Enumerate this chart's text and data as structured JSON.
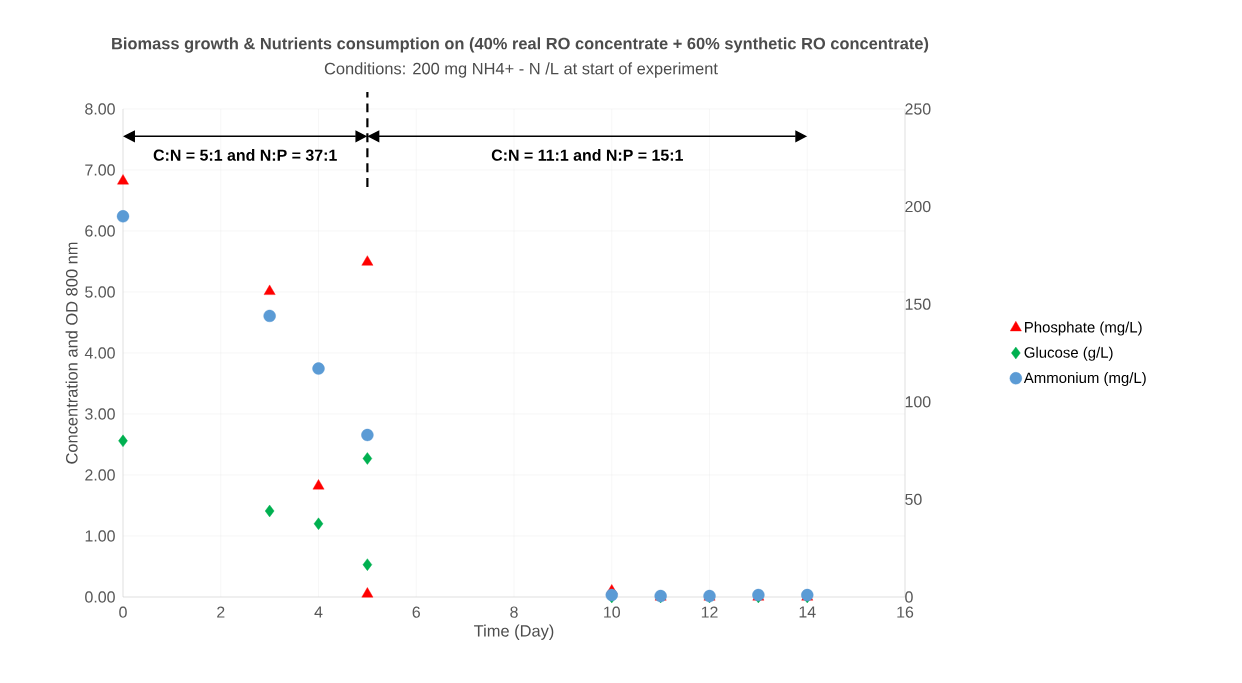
{
  "chart_data": {
    "type": "scatter",
    "title": "Biomass growth & Nutrients consumption on (40% real RO concentrate + 60% synthetic RO concentrate)",
    "subtitle": "Conditions: 200 mg NH4+ - N /L at start of experiment",
    "xlabel": "Time (Day)",
    "ylabel": "Concentration and OD 800 nm",
    "xlim": [
      0,
      16
    ],
    "xticks": [
      0,
      2,
      4,
      6,
      8,
      10,
      12,
      14,
      16
    ],
    "ylim": [
      0,
      8
    ],
    "yticks": [
      {
        "value": 0,
        "label": "0.00"
      },
      {
        "value": 1,
        "label": "1.00"
      },
      {
        "value": 2,
        "label": "2.00"
      },
      {
        "value": 3,
        "label": "3.00"
      },
      {
        "value": 4,
        "label": "4.00"
      },
      {
        "value": 5,
        "label": "5.00"
      },
      {
        "value": 6,
        "label": "6.00"
      },
      {
        "value": 7,
        "label": "7.00"
      },
      {
        "value": 8,
        "label": "8.00"
      }
    ],
    "y2lim": [
      0,
      250
    ],
    "y2ticks": [
      0,
      50,
      100,
      150,
      200,
      250
    ],
    "grid": true,
    "legend": "right",
    "series": [
      {
        "name": "Phosphate (mg/L)",
        "color": "#ff0000",
        "marker": "triangle",
        "x": [
          0,
          3,
          4,
          5,
          5,
          10,
          11,
          12,
          13,
          14
        ],
        "values": [
          6.82,
          5.01,
          1.82,
          5.49,
          0.05,
          0.1,
          0,
          0,
          0,
          0
        ]
      },
      {
        "name": "Glucose (g/L)",
        "color": "#00b050",
        "marker": "diamond",
        "x": [
          0,
          3,
          4,
          5,
          5,
          10,
          11,
          12,
          13,
          14
        ],
        "values": [
          2.56,
          1.41,
          1.2,
          2.27,
          0.53,
          0,
          0,
          0,
          0,
          0
        ]
      },
      {
        "name": "Ammonium (mg/L)",
        "color": "#5b9bd5",
        "marker": "circle",
        "axis": "y2",
        "x": [
          0,
          3,
          4,
          5,
          10,
          11,
          12,
          13,
          14
        ],
        "values": [
          195,
          144,
          117,
          83,
          1,
          0.5,
          0.5,
          1,
          1
        ]
      }
    ],
    "ref_lines": [
      {
        "axis": "x",
        "value": 5,
        "line_style": "dashed"
      }
    ],
    "annotations": [
      "C:N = 5:1 and N:P = 37:1",
      "C:N = 11:1 and N:P = 15:1"
    ]
  }
}
